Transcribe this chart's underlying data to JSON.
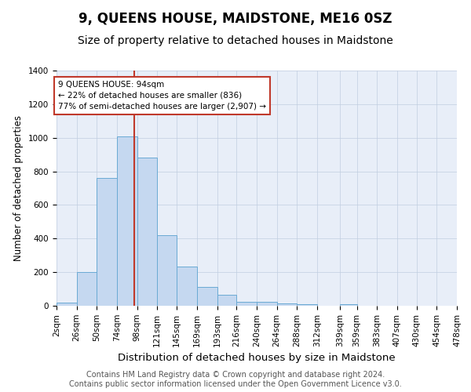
{
  "title": "9, QUEENS HOUSE, MAIDSTONE, ME16 0SZ",
  "subtitle": "Size of property relative to detached houses in Maidstone",
  "xlabel": "Distribution of detached houses by size in Maidstone",
  "ylabel": "Number of detached properties",
  "footer_line1": "Contains HM Land Registry data © Crown copyright and database right 2024.",
  "footer_line2": "Contains public sector information licensed under the Open Government Licence v3.0.",
  "bin_labels": [
    "2sqm",
    "26sqm",
    "50sqm",
    "74sqm",
    "98sqm",
    "121sqm",
    "145sqm",
    "169sqm",
    "193sqm",
    "216sqm",
    "240sqm",
    "264sqm",
    "288sqm",
    "312sqm",
    "339sqm",
    "359sqm",
    "383sqm",
    "407sqm",
    "430sqm",
    "454sqm",
    "478sqm"
  ],
  "bar_values": [
    20,
    200,
    760,
    1010,
    880,
    420,
    235,
    110,
    65,
    25,
    25,
    15,
    10,
    0,
    10,
    0,
    0,
    0,
    0,
    0
  ],
  "bar_color": "#c5d8f0",
  "bar_edge_color": "#6aaad4",
  "vline_x": 94,
  "vline_color": "#c0392b",
  "annotation_text": "9 QUEENS HOUSE: 94sqm\n← 22% of detached houses are smaller (836)\n77% of semi-detached houses are larger (2,907) →",
  "annotation_box_color": "#ffffff",
  "annotation_box_edge_color": "#c0392b",
  "ylim": [
    0,
    1400
  ],
  "yticks": [
    0,
    200,
    400,
    600,
    800,
    1000,
    1200,
    1400
  ],
  "bin_edges": [
    2,
    26,
    50,
    74,
    98,
    121,
    145,
    169,
    193,
    216,
    240,
    264,
    288,
    312,
    339,
    359,
    383,
    407,
    430,
    454,
    478
  ],
  "title_fontsize": 12,
  "subtitle_fontsize": 10,
  "xlabel_fontsize": 9.5,
  "ylabel_fontsize": 8.5,
  "tick_fontsize": 7.5,
  "footer_fontsize": 7,
  "plot_bg_color": "#e8eef8"
}
